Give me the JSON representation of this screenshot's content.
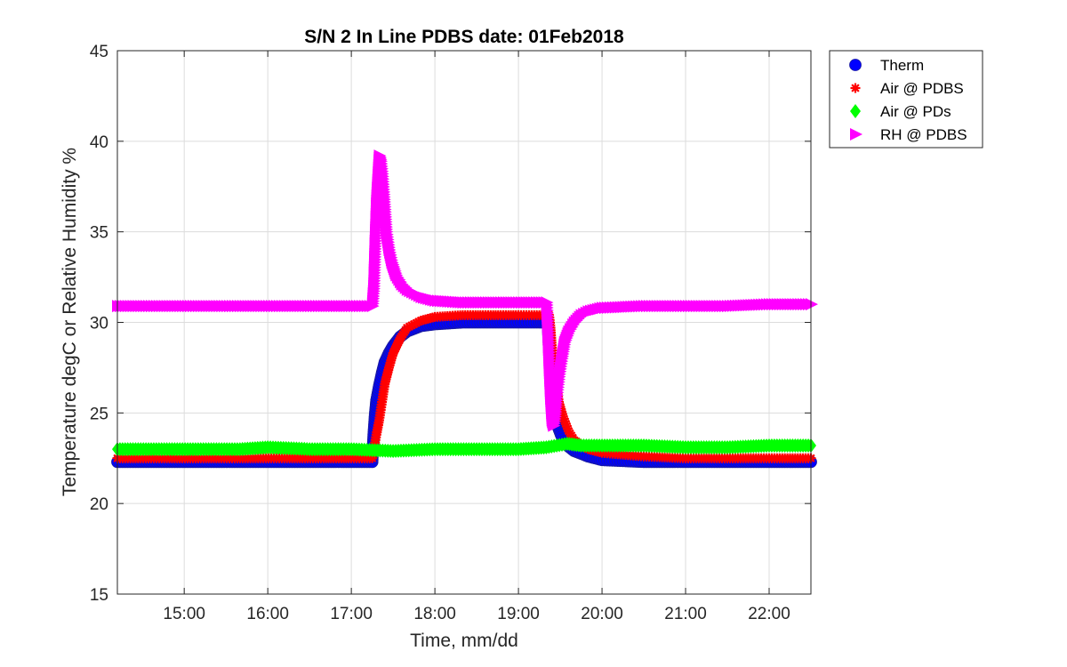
{
  "chart_data": {
    "type": "scatter",
    "title": "S/N 2 In Line PDBS date: 01Feb2018",
    "xlabel": "Time, mm/dd",
    "ylabel": "Temperature degC or Relative Humidity %",
    "xlim": [
      "14:12",
      "22:30"
    ],
    "ylim": [
      15,
      45
    ],
    "x_ticks": [
      "15:00",
      "16:00",
      "17:00",
      "18:00",
      "19:00",
      "20:00",
      "21:00",
      "22:00"
    ],
    "y_ticks": [
      15,
      20,
      25,
      30,
      35,
      40,
      45
    ],
    "grid": true,
    "legend_position": "outside-top-right",
    "series": [
      {
        "name": "Therm",
        "color": "#0000ff",
        "marker": "circle",
        "points": [
          [
            "14:12",
            22.3
          ],
          [
            "14:40",
            22.3
          ],
          [
            "15:10",
            22.3
          ],
          [
            "15:40",
            22.3
          ],
          [
            "16:10",
            22.3
          ],
          [
            "16:40",
            22.3
          ],
          [
            "17:00",
            22.3
          ],
          [
            "17:15",
            22.3
          ],
          [
            "17:16",
            23.8
          ],
          [
            "17:17",
            24.9
          ],
          [
            "17:18",
            25.7
          ],
          [
            "17:20",
            26.5
          ],
          [
            "17:22",
            27.2
          ],
          [
            "17:24",
            27.8
          ],
          [
            "17:27",
            28.3
          ],
          [
            "17:30",
            28.7
          ],
          [
            "17:35",
            29.2
          ],
          [
            "17:40",
            29.5
          ],
          [
            "17:50",
            29.8
          ],
          [
            "18:00",
            29.9
          ],
          [
            "18:20",
            30.0
          ],
          [
            "18:40",
            30.0
          ],
          [
            "19:00",
            30.0
          ],
          [
            "19:15",
            30.0
          ],
          [
            "19:21",
            30.0
          ],
          [
            "19:22",
            28.5
          ],
          [
            "19:23",
            27.2
          ],
          [
            "19:24",
            26.0
          ],
          [
            "19:26",
            25.0
          ],
          [
            "19:28",
            24.3
          ],
          [
            "19:31",
            23.7
          ],
          [
            "19:35",
            23.2
          ],
          [
            "19:40",
            22.9
          ],
          [
            "19:50",
            22.6
          ],
          [
            "20:00",
            22.4
          ],
          [
            "20:30",
            22.3
          ],
          [
            "21:00",
            22.3
          ],
          [
            "21:30",
            22.3
          ],
          [
            "22:00",
            22.3
          ],
          [
            "22:30",
            22.3
          ]
        ]
      },
      {
        "name": "Air @ PDBS",
        "color": "#ff0000",
        "marker": "asterisk",
        "points": [
          [
            "14:12",
            22.5
          ],
          [
            "14:40",
            22.5
          ],
          [
            "15:10",
            22.5
          ],
          [
            "15:40",
            22.5
          ],
          [
            "16:10",
            22.5
          ],
          [
            "16:40",
            22.5
          ],
          [
            "17:00",
            22.5
          ],
          [
            "17:15",
            22.5
          ],
          [
            "17:18",
            23.8
          ],
          [
            "17:20",
            24.6
          ],
          [
            "17:22",
            25.6
          ],
          [
            "17:24",
            26.6
          ],
          [
            "17:27",
            27.5
          ],
          [
            "17:30",
            28.3
          ],
          [
            "17:35",
            29.1
          ],
          [
            "17:40",
            29.7
          ],
          [
            "17:50",
            30.1
          ],
          [
            "18:00",
            30.3
          ],
          [
            "18:20",
            30.4
          ],
          [
            "18:40",
            30.4
          ],
          [
            "19:00",
            30.4
          ],
          [
            "19:15",
            30.4
          ],
          [
            "19:22",
            30.4
          ],
          [
            "19:23",
            29.7
          ],
          [
            "19:24",
            28.6
          ],
          [
            "19:25",
            27.6
          ],
          [
            "19:27",
            26.6
          ],
          [
            "19:29",
            25.6
          ],
          [
            "19:32",
            24.8
          ],
          [
            "19:36",
            24.0
          ],
          [
            "19:40",
            23.5
          ],
          [
            "19:50",
            23.0
          ],
          [
            "20:00",
            22.8
          ],
          [
            "20:30",
            22.6
          ],
          [
            "21:00",
            22.5
          ],
          [
            "21:30",
            22.5
          ],
          [
            "22:00",
            22.5
          ],
          [
            "22:30",
            22.5
          ]
        ]
      },
      {
        "name": "Air @ PDs",
        "color": "#00ff00",
        "marker": "diamond",
        "points": [
          [
            "14:12",
            23.0
          ],
          [
            "14:40",
            23.0
          ],
          [
            "15:10",
            23.0
          ],
          [
            "15:40",
            23.0
          ],
          [
            "16:00",
            23.1
          ],
          [
            "16:30",
            23.0
          ],
          [
            "17:00",
            23.0
          ],
          [
            "17:30",
            22.9
          ],
          [
            "18:00",
            23.0
          ],
          [
            "18:30",
            23.0
          ],
          [
            "19:00",
            23.0
          ],
          [
            "19:20",
            23.1
          ],
          [
            "19:35",
            23.3
          ],
          [
            "19:45",
            23.2
          ],
          [
            "20:00",
            23.2
          ],
          [
            "20:30",
            23.2
          ],
          [
            "21:00",
            23.1
          ],
          [
            "21:30",
            23.1
          ],
          [
            "22:00",
            23.2
          ],
          [
            "22:30",
            23.2
          ]
        ]
      },
      {
        "name": "RH @ PDBS",
        "color": "#ff00ff",
        "marker": "triangle-right",
        "points": [
          [
            "14:12",
            30.9
          ],
          [
            "14:40",
            30.9
          ],
          [
            "15:10",
            30.9
          ],
          [
            "15:40",
            30.9
          ],
          [
            "16:10",
            30.9
          ],
          [
            "16:40",
            30.9
          ],
          [
            "17:00",
            30.9
          ],
          [
            "17:15",
            30.9
          ],
          [
            "17:16",
            32.0
          ],
          [
            "17:17",
            34.5
          ],
          [
            "17:18",
            36.7
          ],
          [
            "17:19",
            38.0
          ],
          [
            "17:20",
            39.2
          ],
          [
            "17:21",
            38.9
          ],
          [
            "17:22",
            38.2
          ],
          [
            "17:23",
            37.2
          ],
          [
            "17:24",
            36.1
          ],
          [
            "17:25",
            35.0
          ],
          [
            "17:27",
            34.0
          ],
          [
            "17:29",
            33.3
          ],
          [
            "17:32",
            32.6
          ],
          [
            "17:36",
            32.1
          ],
          [
            "17:40",
            31.8
          ],
          [
            "17:50",
            31.4
          ],
          [
            "18:00",
            31.2
          ],
          [
            "18:20",
            31.1
          ],
          [
            "18:40",
            31.1
          ],
          [
            "19:00",
            31.1
          ],
          [
            "19:20",
            31.1
          ],
          [
            "19:21",
            29.5
          ],
          [
            "19:22",
            27.5
          ],
          [
            "19:23",
            25.8
          ],
          [
            "19:24",
            24.6
          ],
          [
            "19:25",
            24.3
          ],
          [
            "19:26",
            24.8
          ],
          [
            "19:27",
            25.7
          ],
          [
            "19:29",
            27.0
          ],
          [
            "19:31",
            28.0
          ],
          [
            "19:33",
            28.9
          ],
          [
            "19:36",
            29.5
          ],
          [
            "19:40",
            30.0
          ],
          [
            "19:45",
            30.4
          ],
          [
            "19:50",
            30.6
          ],
          [
            "20:00",
            30.8
          ],
          [
            "20:30",
            30.9
          ],
          [
            "21:00",
            30.9
          ],
          [
            "21:30",
            30.9
          ],
          [
            "22:00",
            31.0
          ],
          [
            "22:30",
            31.0
          ]
        ]
      }
    ]
  }
}
